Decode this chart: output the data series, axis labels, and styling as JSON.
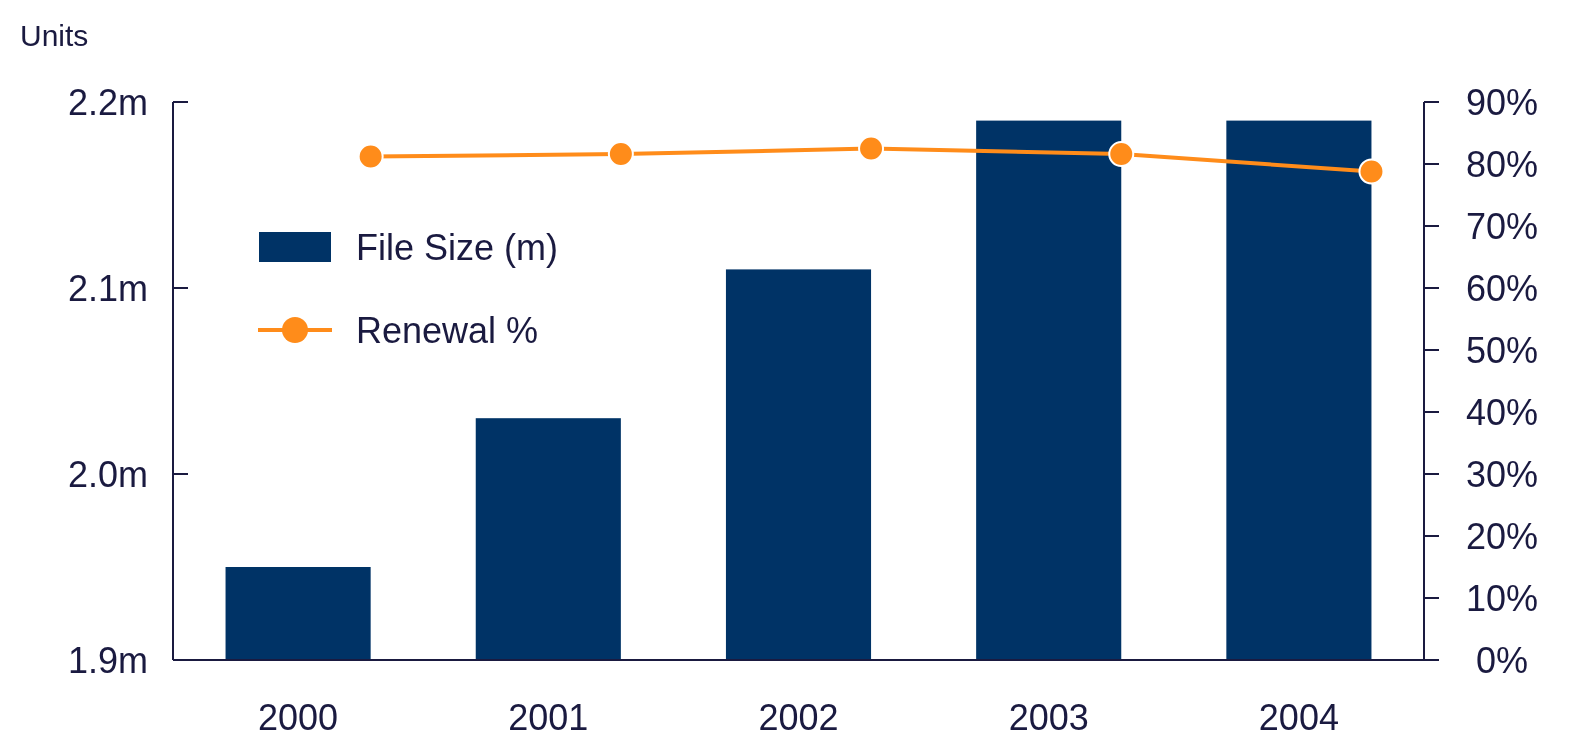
{
  "chart_data": {
    "type": "bar",
    "ylabel": "Units",
    "categories": [
      "2000",
      "2001",
      "2002",
      "2003",
      "2004"
    ],
    "series": [
      {
        "name": "File Size (m)",
        "color": "#003366",
        "values": [
          1.95,
          2.03,
          2.11,
          2.19,
          2.19
        ]
      },
      {
        "name": "Renewal %",
        "type": "line",
        "axis": "y2",
        "color": "#ff8c1a",
        "values": [
          81.2,
          81.6,
          82.5,
          81.6,
          78.8
        ]
      }
    ],
    "ylim": [
      1.9,
      2.2
    ],
    "yticks": [
      {
        "value": 1.9,
        "label": "1.9m"
      },
      {
        "value": 2.0,
        "label": "2.0m"
      },
      {
        "value": 2.1,
        "label": "2.1m"
      },
      {
        "value": 2.2,
        "label": "2.2m"
      }
    ],
    "y2lim": [
      0,
      90
    ],
    "y2ticks": [
      {
        "value": 0,
        "label": "0%"
      },
      {
        "value": 10,
        "label": "10%"
      },
      {
        "value": 20,
        "label": "20%"
      },
      {
        "value": 30,
        "label": "30%"
      },
      {
        "value": 40,
        "label": "40%"
      },
      {
        "value": 50,
        "label": "50%"
      },
      {
        "value": 60,
        "label": "60%"
      },
      {
        "value": 70,
        "label": "70%"
      },
      {
        "value": 80,
        "label": "80%"
      },
      {
        "value": 90,
        "label": "90%"
      }
    ],
    "legend": "top left",
    "marker": "circle",
    "line_style": "solid",
    "grid": false
  }
}
